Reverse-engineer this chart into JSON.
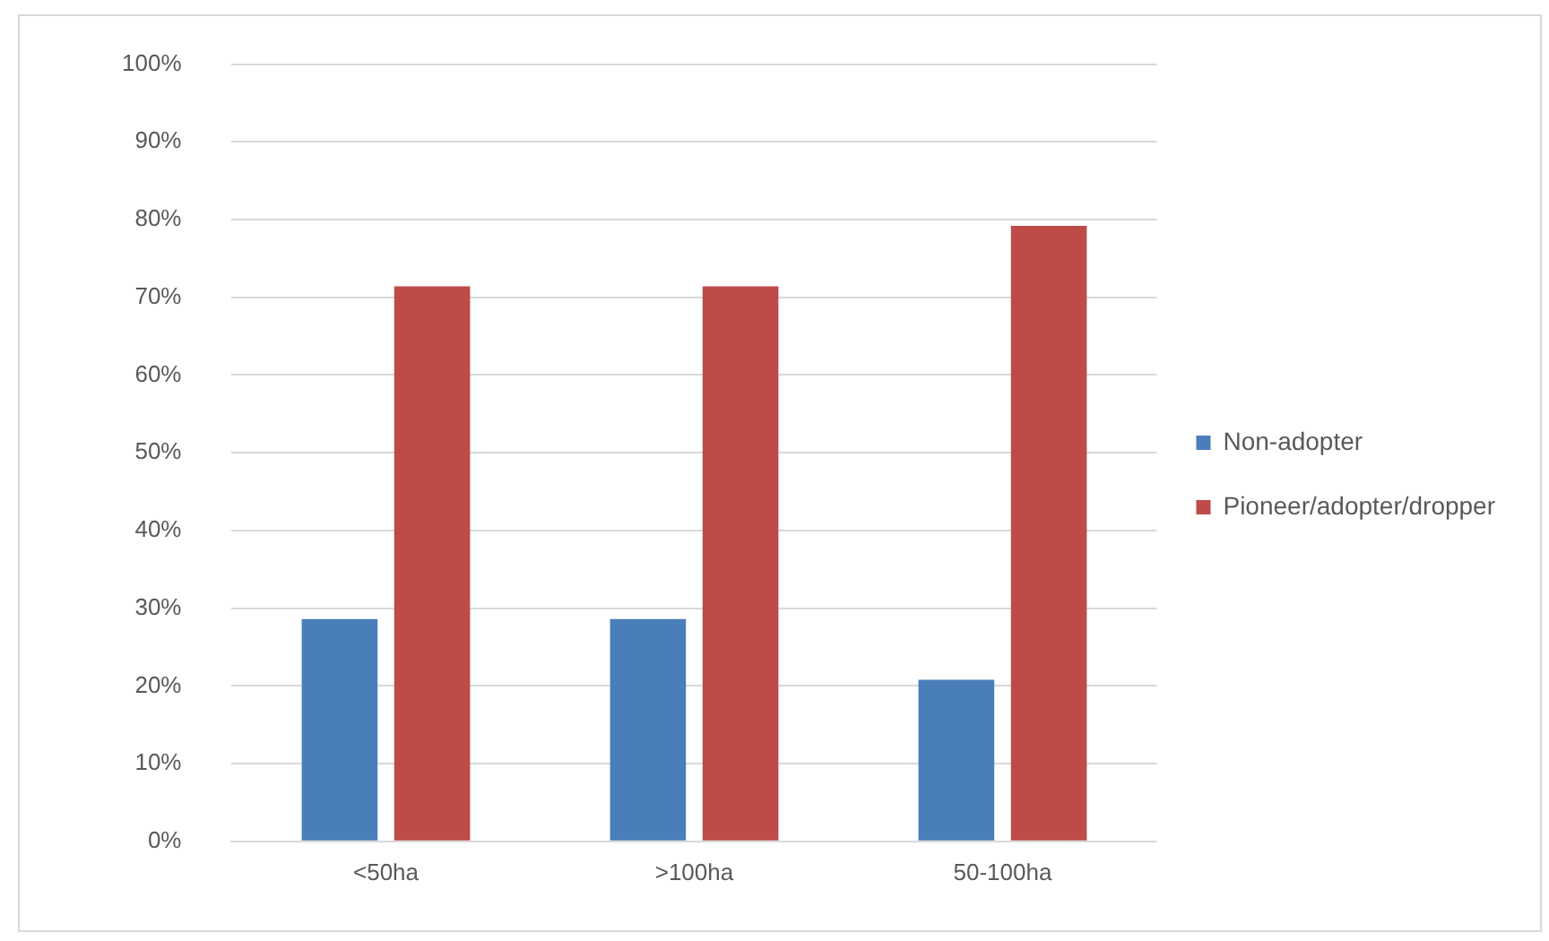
{
  "chart_data": {
    "type": "bar",
    "categories": [
      "<50ha",
      ">100ha",
      "50-100ha"
    ],
    "series": [
      {
        "name": "Non-adopter",
        "color": "#4a7ebb",
        "values": [
          28.6,
          28.6,
          20.8
        ]
      },
      {
        "name": "Pioneer/adopter/dropper",
        "color": "#be4b48",
        "values": [
          71.4,
          71.4,
          79.2
        ]
      }
    ],
    "ylim": [
      0,
      100
    ],
    "yticks": [
      {
        "value": 0,
        "label": "0%"
      },
      {
        "value": 10,
        "label": "10%"
      },
      {
        "value": 20,
        "label": "20%"
      },
      {
        "value": 30,
        "label": "30%"
      },
      {
        "value": 40,
        "label": "40%"
      },
      {
        "value": 50,
        "label": "50%"
      },
      {
        "value": 60,
        "label": "60%"
      },
      {
        "value": 70,
        "label": "70%"
      },
      {
        "value": 80,
        "label": "80%"
      },
      {
        "value": 90,
        "label": "90%"
      },
      {
        "value": 100,
        "label": "100%"
      }
    ],
    "grid": "y",
    "legend": "right"
  }
}
